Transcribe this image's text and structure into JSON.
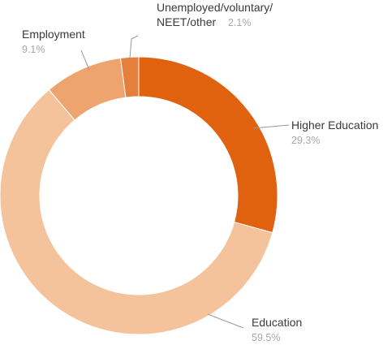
{
  "chart_data": {
    "type": "pie",
    "donut": true,
    "legend": "none",
    "slices": [
      {
        "name": "Higher Education",
        "value": 29.3,
        "label": "29.3%",
        "color": "#e0620f"
      },
      {
        "name": "Education",
        "value": 59.5,
        "label": "59.5%",
        "color": "#f4c39c"
      },
      {
        "name": "Employment",
        "value": 9.1,
        "label": "9.1%",
        "color": "#eda46e"
      },
      {
        "name": "Unemployed/voluntary/NEET/other",
        "name_lines": [
          "Unemployed/voluntary/",
          "NEET/other"
        ],
        "value": 2.1,
        "label": "2.1%",
        "color": "#e5803c"
      }
    ]
  }
}
